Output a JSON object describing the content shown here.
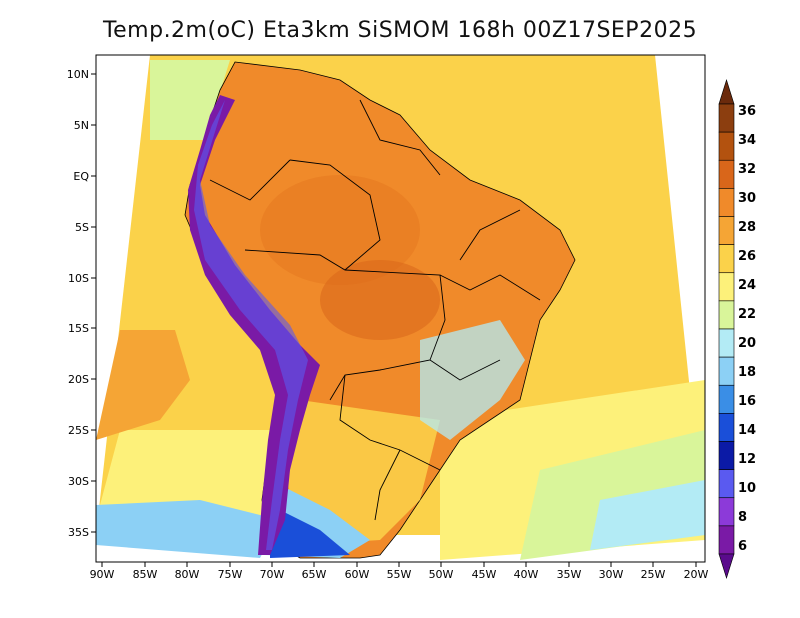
{
  "title": "Temp.2m(oC) Eta3km SiSMOM 168h 00Z17SEP2025",
  "lat_ticks": [
    "10N",
    "5N",
    "EQ",
    "5S",
    "10S",
    "15S",
    "20S",
    "25S",
    "30S",
    "35S"
  ],
  "lon_ticks": [
    "90W",
    "85W",
    "80W",
    "75W",
    "70W",
    "65W",
    "60W",
    "55W",
    "50W",
    "45W",
    "40W",
    "35W",
    "30W",
    "25W",
    "20W"
  ],
  "colorbar": {
    "labels": [
      "36",
      "34",
      "32",
      "30",
      "28",
      "26",
      "24",
      "22",
      "20",
      "18",
      "16",
      "14",
      "12",
      "10",
      "8",
      "6"
    ],
    "colors": [
      "#6b2a0c",
      "#8c3e0f",
      "#b3520f",
      "#d9661a",
      "#f08a2a",
      "#f5a535",
      "#fbd24a",
      "#fdf17a",
      "#d9f59a",
      "#b3ebf5",
      "#8cd0f5",
      "#3a8ee6",
      "#1a4fd9",
      "#0b1aa6",
      "#5a5af0",
      "#8c3ad9",
      "#7a1aa6",
      "#5a0b8c"
    ]
  },
  "colors": {
    "ocean_warm": "#fbd24a",
    "ocean_cool": "#fdf17a",
    "land_hot": "#f08a2a",
    "andes": "#7a1aa6"
  }
}
